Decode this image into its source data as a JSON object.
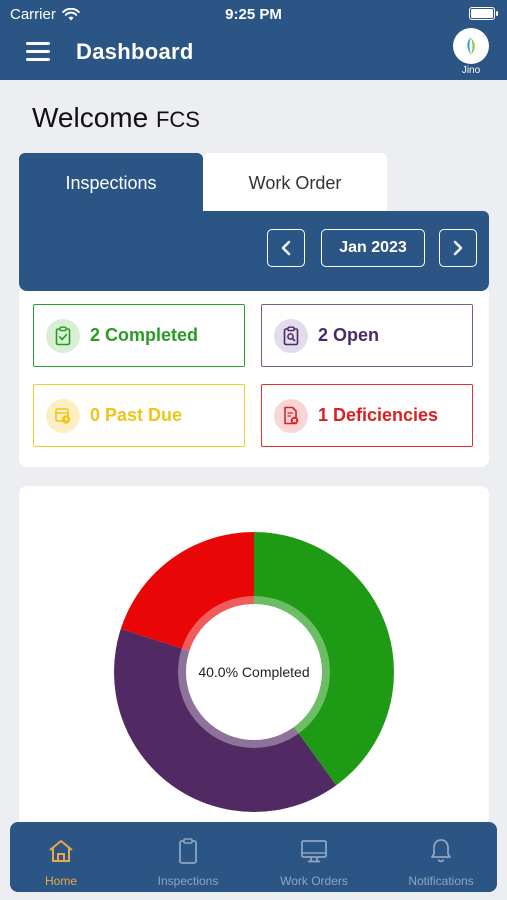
{
  "status_bar": {
    "carrier": "Carrier",
    "time": "9:25 PM"
  },
  "header": {
    "title": "Dashboard",
    "avatar_label": "Jino"
  },
  "welcome": {
    "greeting": "Welcome",
    "user": "FCS"
  },
  "tabs": [
    {
      "label": "Inspections",
      "active": true
    },
    {
      "label": "Work Order",
      "active": false
    }
  ],
  "month_nav": {
    "prev": "<",
    "month": "Jan 2023",
    "next": ">"
  },
  "status_cards": {
    "completed": "2 Completed",
    "open": "2 Open",
    "past_due": "0 Past Due",
    "deficiencies": "1 Deficiencies"
  },
  "chart_data": {
    "type": "pie",
    "center_label": "40.0% Completed",
    "slices": [
      {
        "label": "Completed",
        "value": 2,
        "color": "#1f9a14"
      },
      {
        "label": "Open",
        "value": 2,
        "color": "#512963"
      },
      {
        "label": "Deficiencies",
        "value": 1,
        "color": "#e80606"
      }
    ]
  },
  "bottom_nav": [
    {
      "label": "Home",
      "icon": "home-icon",
      "active": true
    },
    {
      "label": "Inspections",
      "icon": "clipboard-icon",
      "active": false
    },
    {
      "label": "Work Orders",
      "icon": "monitor-icon",
      "active": false
    },
    {
      "label": "Notifications",
      "icon": "bell-icon",
      "active": false
    }
  ],
  "colors": {
    "primary": "#2b5585",
    "accent": "#e8a94a",
    "completed": "#2a9b22",
    "open": "#4b2866",
    "past_due": "#f0c419",
    "deficiencies": "#dd1f1f"
  }
}
